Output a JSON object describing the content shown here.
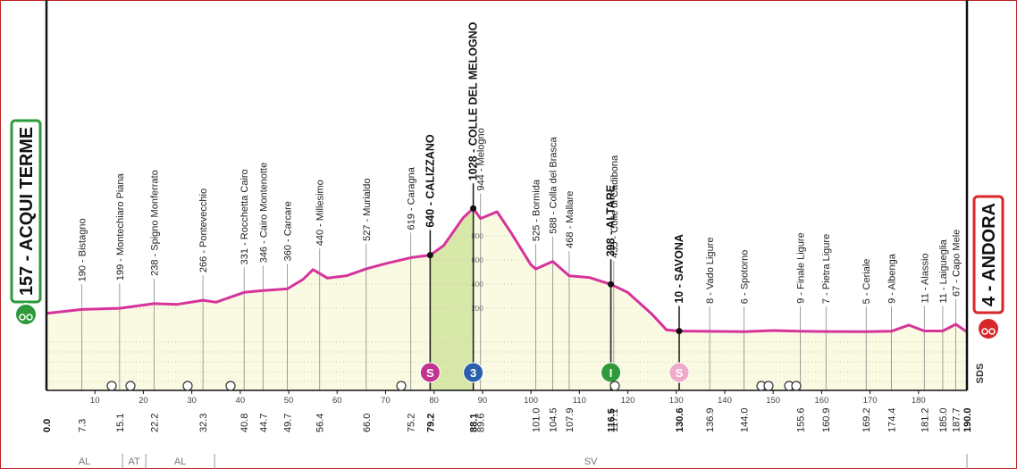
{
  "chart_data": {
    "type": "profile",
    "xlim": [
      0,
      190
    ],
    "ylim": [
      0,
      1200
    ],
    "xticks": [
      10,
      20,
      30,
      40,
      50,
      60,
      70,
      80,
      90,
      100,
      110,
      120,
      130,
      140,
      150,
      160,
      170,
      180
    ],
    "yticks": [
      200,
      400,
      600,
      800
    ],
    "line_color": "#d6339b",
    "fill_color": "#fafae3",
    "start": {
      "label": "157 - ACQUI TERME",
      "km": {
        "value": 0,
        "label": "0.0"
      },
      "color": "#2e9a3a"
    },
    "finish": {
      "label": "4 - ANDORA",
      "km": {
        "value": 190,
        "label": "190.0"
      },
      "color": "#d9262b"
    },
    "profile": {
      "x": [
        0,
        7.3,
        15.1,
        22.2,
        27,
        32.3,
        35,
        40.8,
        44.7,
        49.7,
        53,
        55,
        58,
        62,
        66,
        70,
        75.2,
        79.2,
        82,
        86,
        88.1,
        89.6,
        93,
        96,
        100,
        101,
        104.5,
        107.9,
        112,
        116.5,
        120,
        125,
        128,
        130.6,
        136.9,
        144,
        150,
        155.6,
        160.9,
        169.2,
        174.4,
        178,
        181.2,
        185,
        187.7,
        190
      ],
      "y": [
        157,
        190,
        199,
        238,
        232,
        266,
        250,
        331,
        346,
        360,
        440,
        520,
        450,
        470,
        527,
        570,
        619,
        640,
        720,
        950,
        1028,
        944,
        1000,
        820,
        560,
        525,
        588,
        468,
        455,
        398,
        330,
        150,
        20,
        10,
        8,
        6,
        15,
        9,
        7,
        5,
        9,
        60,
        11,
        11,
        67,
        4
      ]
    },
    "locations": [
      {
        "km": 7.3,
        "label": "190 - Bistagno"
      },
      {
        "km": 15.1,
        "label": "199 - Montechiaro Piana"
      },
      {
        "km": 22.2,
        "label": "238 - Spigno Monferrato"
      },
      {
        "km": 32.3,
        "label": "266 - Pontevecchio"
      },
      {
        "km": 40.8,
        "label": "331 - Rocchetta Cairo"
      },
      {
        "km": 44.7,
        "label": "346 - Cairo Montenotte"
      },
      {
        "km": 49.7,
        "label": "360 - Carcare"
      },
      {
        "km": 56.4,
        "label": "440 - Millesimo"
      },
      {
        "km": {
          "value": 66,
          "label": "66.0"
        },
        "label": "527 - Murialdo"
      },
      {
        "km": 75.2,
        "label": "619 - Caragna"
      },
      {
        "km": 79.2,
        "label": "640 - CALIZZANO",
        "bold": true,
        "marker": {
          "symbol": "S",
          "color": "#c2338f"
        }
      },
      {
        "km": 88.1,
        "label": "1028 - COLLE DEL MELOGNO",
        "bold": true,
        "climb_color": "#d7e8a8",
        "marker": {
          "symbol": "3",
          "color": "#2a5fae"
        }
      },
      {
        "km": 89.6,
        "label": "944 - Melogno"
      },
      {
        "km": {
          "value": 101,
          "label": "101.0"
        },
        "label": "525 - Bormida"
      },
      {
        "km": 104.5,
        "label": "588 - Colla del Brasca"
      },
      {
        "km": 107.9,
        "label": "468 - Mallare"
      },
      {
        "km": 116.5,
        "label": "398 - ALTARE",
        "bold": true,
        "marker": {
          "symbol": "I",
          "color": "#2e9a3a"
        }
      },
      {
        "km": 117.1,
        "label": "435 - Colle di Cadibona"
      },
      {
        "km": 130.6,
        "label": "10 - SAVONA",
        "bold": true,
        "marker": {
          "symbol": "S",
          "color": "#eeaac8"
        }
      },
      {
        "km": 136.9,
        "label": "8 - Vado Ligure"
      },
      {
        "km": {
          "value": 144,
          "label": "144.0"
        },
        "label": "6 - Spotorno"
      },
      {
        "km": 155.6,
        "label": "9 - Finale Ligure"
      },
      {
        "km": 160.9,
        "label": "7 - Pietra Ligure"
      },
      {
        "km": 169.2,
        "label": "5 - Ceriale"
      },
      {
        "km": 174.4,
        "label": "9 - Albenga"
      },
      {
        "km": 181.2,
        "label": "11 - Alassio"
      },
      {
        "km": {
          "value": 185,
          "label": "185.0"
        },
        "label": "11 - Laigueglia"
      },
      {
        "km": 187.7,
        "label": "67 - Capo Mele"
      }
    ],
    "regions": [
      {
        "label": "AL",
        "from": 0,
        "to": 15.7
      },
      {
        "label": "AT",
        "from": 15.7,
        "to": 20.5
      },
      {
        "label": "AL",
        "from": 20.5,
        "to": 34.7
      },
      {
        "label": "SV",
        "from": 34.7,
        "to": 190
      }
    ],
    "logo": "SDS"
  }
}
